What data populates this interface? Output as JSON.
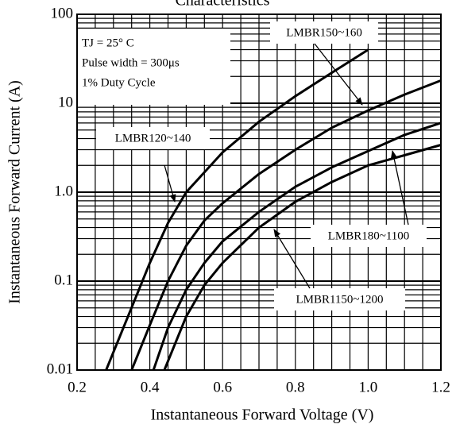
{
  "chart_data": {
    "type": "line",
    "title": "Characteristics",
    "xlabel": "Instantaneous Forward Voltage (V)",
    "ylabel": "Instantaneous Forward Current (A)",
    "xlim": [
      0.2,
      1.2
    ],
    "ylim": [
      0.01,
      100
    ],
    "yscale": "log",
    "grid": true,
    "x_ticks": [
      {
        "value": 0.2,
        "label": "0.2"
      },
      {
        "value": 0.4,
        "label": "0.4"
      },
      {
        "value": 0.6,
        "label": "0.6"
      },
      {
        "value": 0.8,
        "label": "0.8"
      },
      {
        "value": 1.0,
        "label": "1.0"
      },
      {
        "value": 1.2,
        "label": "1.2"
      }
    ],
    "y_ticks": [
      {
        "value": 0.01,
        "label": "0.01"
      },
      {
        "value": 0.1,
        "label": "0.1"
      },
      {
        "value": 1,
        "label": "1.0"
      },
      {
        "value": 10,
        "label": "10"
      },
      {
        "value": 100,
        "label": "100"
      }
    ],
    "conditions": [
      "TJ = 25° C",
      "Pulse width = 300μs",
      "1% Duty Cycle"
    ],
    "series": [
      {
        "name": "LMBR120~140",
        "x": [
          0.28,
          0.34,
          0.4,
          0.45,
          0.5,
          0.6,
          0.7,
          0.8,
          0.9,
          1.0
        ],
        "y": [
          0.01,
          0.04,
          0.16,
          0.45,
          1.0,
          2.8,
          6.2,
          12,
          22,
          40
        ]
      },
      {
        "name": "LMBR150~160",
        "x": [
          0.35,
          0.4,
          0.45,
          0.5,
          0.55,
          0.6,
          0.7,
          0.8,
          0.9,
          1.0,
          1.1,
          1.2
        ],
        "y": [
          0.01,
          0.032,
          0.1,
          0.25,
          0.48,
          0.75,
          1.6,
          3.0,
          5.3,
          8.3,
          12.5,
          18
        ]
      },
      {
        "name": "LMBR180~1100",
        "x": [
          0.41,
          0.45,
          0.5,
          0.55,
          0.6,
          0.7,
          0.8,
          0.9,
          1.0,
          1.1,
          1.2
        ],
        "y": [
          0.01,
          0.03,
          0.08,
          0.16,
          0.28,
          0.6,
          1.15,
          1.9,
          2.9,
          4.4,
          6.0
        ]
      },
      {
        "name": "LMBR1150~1200",
        "x": [
          0.44,
          0.5,
          0.55,
          0.6,
          0.7,
          0.8,
          0.9,
          1.0,
          1.1,
          1.2
        ],
        "y": [
          0.01,
          0.04,
          0.09,
          0.16,
          0.4,
          0.78,
          1.3,
          2.0,
          2.6,
          3.4
        ]
      }
    ]
  }
}
